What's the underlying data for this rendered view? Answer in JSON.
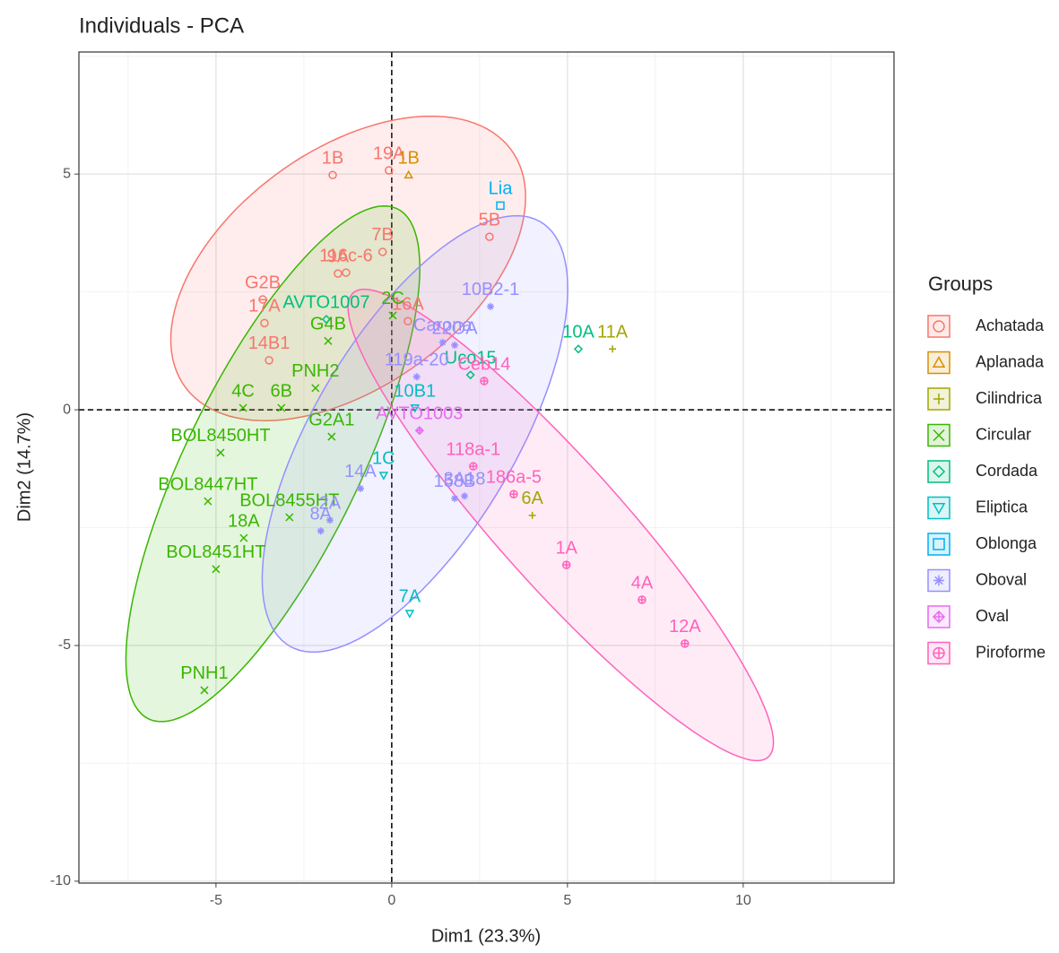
{
  "chart_data": {
    "type": "scatter",
    "title": "Individuals - PCA",
    "x_label": "Dim1 (23.3%)",
    "y_label": "Dim2 (14.7%)",
    "legend_title": "Groups",
    "xlim": [
      -8.9,
      14.29
    ],
    "ylim": [
      -10.04,
      7.59
    ],
    "xticks": [
      -5,
      0,
      5,
      10
    ],
    "yticks": [
      -10,
      -5,
      0,
      5
    ],
    "grid": true,
    "legend": "right",
    "series": [
      {
        "name": "Achatada",
        "color": "#F8766D",
        "ellipse": true,
        "x": [
          -1.68,
          -0.08,
          -0.26,
          2.78,
          -1.3,
          -1.53,
          -3.67,
          -3.62,
          -3.49,
          0.46
        ],
        "y": [
          4.98,
          5.08,
          3.35,
          3.67,
          2.91,
          2.89,
          2.34,
          1.84,
          1.05,
          1.88
        ],
        "labels": [
          "1B",
          "19A",
          "7B",
          "5B",
          "116c-6",
          "9A",
          "G2B",
          "17A",
          "14B1",
          "16A"
        ]
      },
      {
        "name": "Aplanada",
        "color": "#D89000",
        "ellipse": false,
        "x": [
          0.48
        ],
        "y": [
          4.98
        ],
        "labels": [
          "1B"
        ]
      },
      {
        "name": "Cilindrica",
        "color": "#A3A500",
        "ellipse": false,
        "x": [
          6.28,
          4.0
        ],
        "y": [
          1.29,
          -2.24
        ],
        "labels": [
          "11A",
          "6A"
        ]
      },
      {
        "name": "Circular",
        "color": "#39B600",
        "ellipse": true,
        "x": [
          -1.81,
          0.03,
          -2.17,
          -4.23,
          -3.14,
          -1.71,
          -4.87,
          -5.23,
          -2.91,
          -4.21,
          -5.0,
          -5.33
        ],
        "y": [
          1.46,
          2.0,
          0.46,
          0.04,
          0.04,
          -0.57,
          -0.91,
          -1.94,
          -2.28,
          -2.72,
          -3.38,
          -5.95
        ],
        "labels": [
          "G4B",
          "2C",
          "PNH2",
          "4C",
          "6B",
          "G2A1",
          "BOL8450HT",
          "BOL8447HT",
          "BOL8455HT",
          "18A",
          "BOL8451HT",
          "PNH1"
        ]
      },
      {
        "name": "Cordada",
        "color": "#00BF7D",
        "ellipse": false,
        "x": [
          5.31,
          -1.86,
          2.24
        ],
        "y": [
          1.29,
          1.92,
          0.74
        ],
        "labels": [
          "10A",
          "AVTO1007",
          "Uco15"
        ]
      },
      {
        "name": "Eliptica",
        "color": "#00BFC4",
        "ellipse": false,
        "x": [
          0.66,
          -0.23,
          0.51
        ],
        "y": [
          0.04,
          -1.39,
          -4.32
        ],
        "labels": [
          "10B1",
          "1C",
          "7A"
        ]
      },
      {
        "name": "Oblonga",
        "color": "#00B0F6",
        "ellipse": false,
        "x": [
          3.09
        ],
        "y": [
          4.33
        ],
        "labels": [
          "Lia"
        ]
      },
      {
        "name": "Oboval",
        "color": "#9590FF",
        "ellipse": true,
        "x": [
          2.81,
          1.45,
          1.79,
          0.71,
          -0.89,
          1.79,
          2.07,
          -1.76,
          -2.02
        ],
        "y": [
          2.19,
          1.43,
          1.37,
          0.7,
          -1.67,
          -1.88,
          -1.83,
          -2.34,
          -2.57
        ],
        "labels": [
          "10B2-1",
          "Carona",
          "22OA",
          "119a-20",
          "14A",
          "158B",
          "3A18",
          "2A",
          "8A"
        ]
      },
      {
        "name": "Oval",
        "color": "#E76BF3",
        "ellipse": false,
        "x": [
          0.79
        ],
        "y": [
          -0.44
        ],
        "labels": [
          "AVTO1003"
        ]
      },
      {
        "name": "Piroforme",
        "color": "#FF62BC",
        "ellipse": true,
        "x": [
          2.63,
          2.32,
          3.47,
          4.97,
          7.12,
          8.34
        ],
        "y": [
          0.61,
          -1.2,
          -1.79,
          -3.29,
          -4.03,
          -4.96
        ],
        "labels": [
          "Ceb14",
          "118a-1",
          "186a-5",
          "1A",
          "4A",
          "12A"
        ]
      }
    ]
  }
}
